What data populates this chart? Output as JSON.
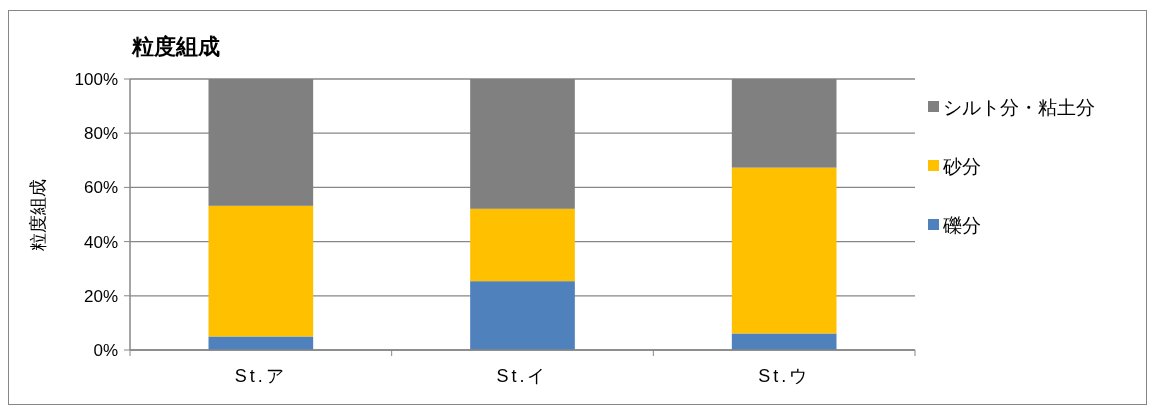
{
  "chart_data": {
    "type": "bar",
    "title": "粒度組成",
    "ylabel": "粒度組成",
    "categories": [
      "St.ア",
      "St.イ",
      "St.ウ"
    ],
    "stacked": true,
    "series": [
      {
        "name": "礫分",
        "color": "#4f81bd",
        "values": [
          5.0,
          25.4,
          6.1
        ]
      },
      {
        "name": "砂分",
        "color": "#ffc000",
        "values": [
          48.2,
          26.7,
          61.2
        ]
      },
      {
        "name": "シルト分・粘土分",
        "color": "#808080",
        "values": [
          46.8,
          47.9,
          32.7
        ]
      }
    ],
    "ylim": [
      0,
      100
    ],
    "yticks": [
      {
        "value": 0,
        "label": "0%"
      },
      {
        "value": 20,
        "label": "20%"
      },
      {
        "value": 40,
        "label": "40%"
      },
      {
        "value": 60,
        "label": "60%"
      },
      {
        "value": 80,
        "label": "80%"
      },
      {
        "value": 100,
        "label": "100%"
      }
    ],
    "grid": "y",
    "legend": "right"
  }
}
